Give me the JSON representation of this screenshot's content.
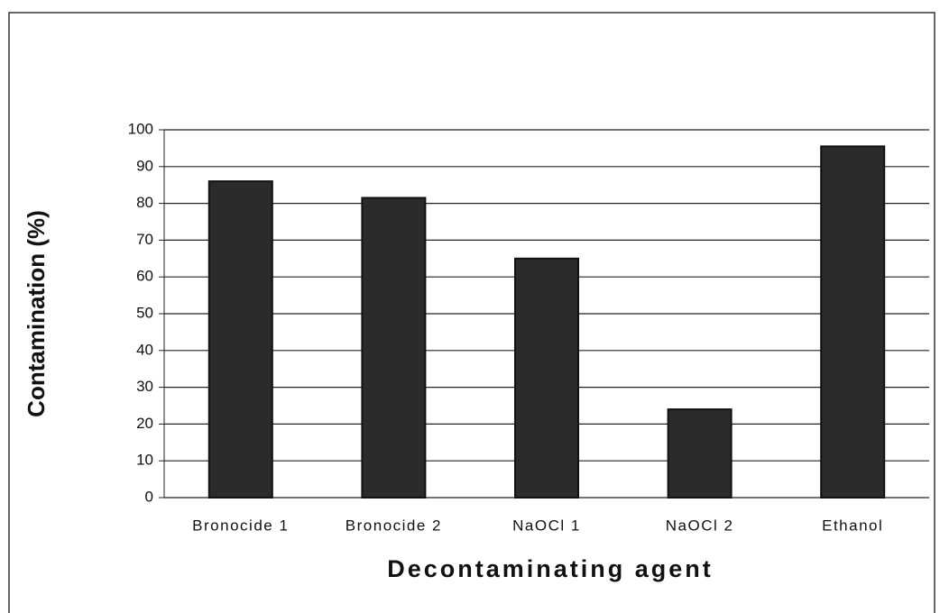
{
  "chart_data": {
    "type": "bar",
    "ylabel": "Contamination (%)",
    "xlabel": "Decontaminating agent",
    "categories": [
      "Bronocide 1",
      "Bronocide 2",
      "NaOCl 1",
      "NaOCl 2",
      "Ethanol"
    ],
    "values": [
      86,
      81.5,
      65,
      24,
      95.5
    ],
    "color": "#2b2b2b",
    "ylim": [
      0,
      100
    ],
    "yticks": [
      0,
      10,
      20,
      30,
      40,
      50,
      60,
      70,
      80,
      90,
      100
    ],
    "grid": true
  }
}
